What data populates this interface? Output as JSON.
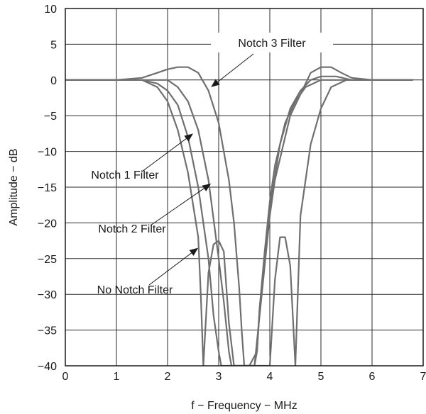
{
  "chart_data": {
    "type": "line",
    "xlabel": "f − Frequency − MHz",
    "ylabel": "Amplitude − dB",
    "xlim": [
      0,
      7
    ],
    "ylim": [
      -40,
      10
    ],
    "xticks": [
      "0",
      "1",
      "2",
      "3",
      "4",
      "5",
      "6",
      "7"
    ],
    "yticks": [
      "10",
      "5",
      "0",
      "−5",
      "−10",
      "−15",
      "−20",
      "−25",
      "−30",
      "−35",
      "−40"
    ],
    "grid": true,
    "series": [
      {
        "name": "No Notch Filter",
        "x": [
          0,
          1.0,
          1.5,
          1.8,
          2.0,
          2.2,
          2.4,
          2.6,
          2.65,
          2.7,
          2.8,
          2.9,
          3.0,
          3.1,
          3.2,
          3.3,
          3.4,
          3.5,
          3.6,
          3.7,
          3.8,
          3.9,
          4.0,
          4.1,
          4.2,
          4.3,
          4.4,
          4.5,
          4.6,
          4.8,
          5.0,
          5.2,
          5.5,
          6.0,
          6.8
        ],
        "y": [
          0,
          0,
          0,
          -1,
          -3,
          -7,
          -13,
          -22,
          -30,
          -40,
          -27,
          -23,
          -22.5,
          -24,
          -34,
          -40,
          -40,
          -40,
          -40,
          -40,
          -40,
          -40,
          -40,
          -28,
          -22,
          -22,
          -26,
          -40,
          -19,
          -9,
          -4,
          -1,
          0,
          0,
          0
        ]
      },
      {
        "name": "Notch 1 Filter",
        "x": [
          0,
          1.0,
          1.5,
          1.8,
          2.0,
          2.2,
          2.4,
          2.6,
          2.8,
          2.9,
          3.0,
          3.05,
          3.1,
          3.4,
          3.7,
          3.75,
          3.8,
          3.9,
          4.0,
          4.1,
          4.3,
          4.5,
          4.7,
          5.0,
          5.3,
          5.6,
          6.0,
          6.8
        ],
        "y": [
          0,
          0,
          0,
          -0.5,
          -1.5,
          -3.5,
          -8,
          -15,
          -25,
          -33,
          -38,
          -40,
          -40,
          -40,
          -40,
          -38,
          -32,
          -24,
          -17,
          -12,
          -6,
          -3,
          -1,
          0,
          0,
          0,
          0,
          0
        ]
      },
      {
        "name": "Notch 2 Filter",
        "x": [
          0,
          1.0,
          1.5,
          1.8,
          2.0,
          2.2,
          2.4,
          2.6,
          2.8,
          3.0,
          3.1,
          3.2,
          3.25,
          3.3,
          3.6,
          3.75,
          3.8,
          3.9,
          4.0,
          4.2,
          4.4,
          4.6,
          4.8,
          5.0,
          5.3,
          5.6,
          6.0,
          6.8
        ],
        "y": [
          0,
          0,
          0,
          0,
          0,
          -1,
          -3,
          -7,
          -14,
          -25,
          -31,
          -38,
          -40,
          -40,
          -40,
          -38,
          -32,
          -25,
          -18,
          -9,
          -4,
          -1.5,
          0,
          0.5,
          0.5,
          0,
          0,
          0
        ]
      },
      {
        "name": "Notch 3 Filter",
        "x": [
          0,
          1.0,
          1.5,
          1.8,
          2.0,
          2.2,
          2.4,
          2.6,
          2.8,
          3.0,
          3.2,
          3.3,
          3.4,
          3.45,
          3.5,
          3.7,
          3.8,
          3.9,
          4.0,
          4.1,
          4.2,
          4.3,
          4.4,
          4.6,
          4.8,
          5.0,
          5.2,
          5.4,
          5.6,
          6.0,
          6.8
        ],
        "y": [
          0,
          0,
          0.3,
          1,
          1.5,
          1.8,
          1.8,
          1,
          -1.5,
          -6,
          -14,
          -20,
          -29,
          -35,
          -40,
          -40,
          -33,
          -26,
          -19,
          -14,
          -11,
          -8,
          -5,
          -2,
          1,
          1.8,
          1.8,
          1,
          0.3,
          0,
          0
        ]
      }
    ],
    "annotations": [
      {
        "text": "Notch 3 Filter",
        "x": 2.85,
        "y": -1.0
      },
      {
        "text": "Notch 1 Filter",
        "x": 2.5,
        "y": -7.5
      },
      {
        "text": "Notch 2 Filter",
        "x": 2.85,
        "y": -14.5
      },
      {
        "text": "No Notch Filter",
        "x": 2.6,
        "y": -23.5
      }
    ]
  }
}
